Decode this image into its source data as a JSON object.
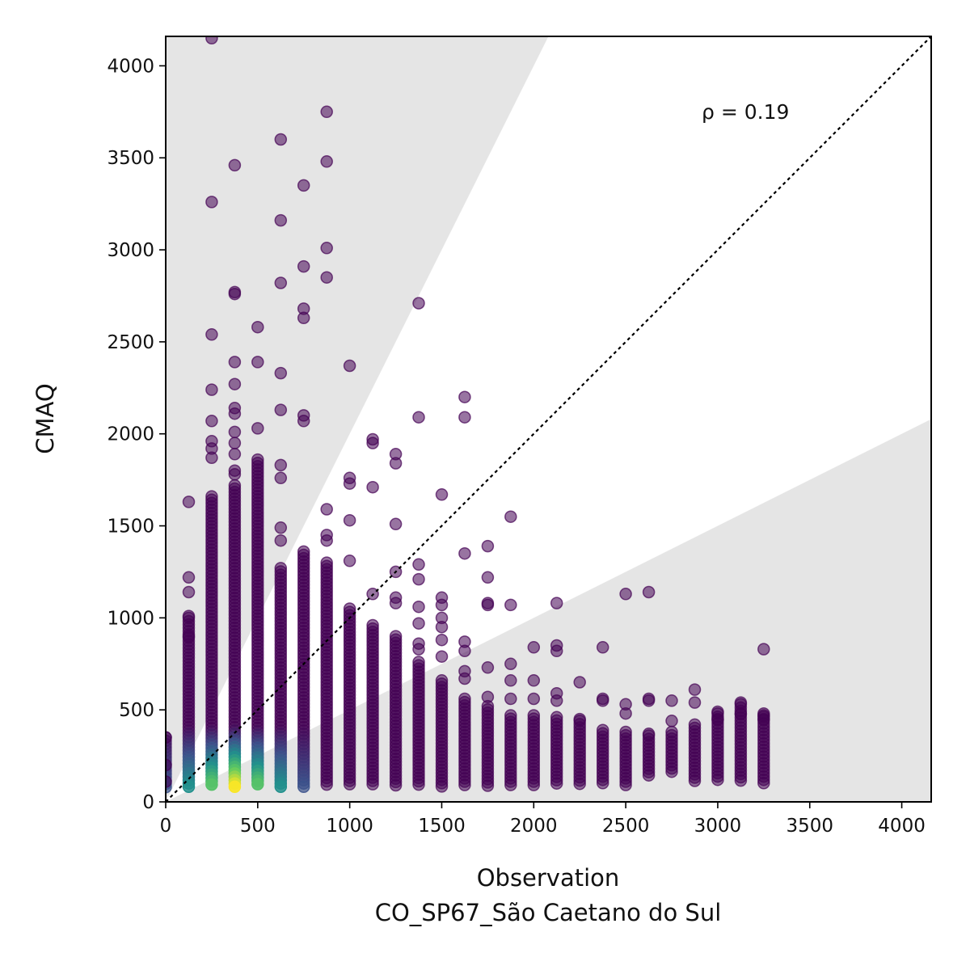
{
  "chart_data": {
    "type": "scatter",
    "title": "",
    "xlabel": "Observation",
    "xlabel_line2": "CO_SP67_São Caetano do Sul",
    "ylabel": "CMAQ",
    "xlim": [
      0,
      4160
    ],
    "ylim": [
      0,
      4160
    ],
    "xticks": [
      0,
      500,
      1000,
      1500,
      2000,
      2500,
      3000,
      3500,
      4000
    ],
    "yticks": [
      0,
      500,
      1000,
      1500,
      2000,
      2500,
      3000,
      3500,
      4000
    ],
    "xtick_labels": [
      "0",
      "500",
      "1000",
      "1500",
      "2000",
      "2500",
      "3000",
      "3500",
      "4000"
    ],
    "ytick_labels": [
      "0",
      "500",
      "1000",
      "1500",
      "2000",
      "2500",
      "3000",
      "3500",
      "4000"
    ],
    "grid": false,
    "annotation": "ρ = 0.19",
    "reference_line": {
      "type": "1:1",
      "style": "dotted",
      "color": "#000000"
    },
    "shaded_regions": {
      "description": "outside factor-of-2 band",
      "upper_slope": 2,
      "lower_slope": 0.5,
      "color": "#e5e5e5"
    },
    "colormap": "viridis",
    "colors": [
      "#440154",
      "#3b528b",
      "#21918c",
      "#5ec962",
      "#fde725"
    ],
    "x_columns": [
      0,
      125,
      250,
      375,
      500,
      625,
      750,
      875,
      1000,
      1125,
      1250,
      1375,
      1500,
      1625,
      1750,
      1875,
      2000,
      2125,
      2250,
      2375,
      2500,
      2625,
      2750,
      2875,
      3000,
      3125,
      3250
    ],
    "column_ranges": [
      [
        80,
        350
      ],
      [
        80,
        1000
      ],
      [
        80,
        1660
      ],
      [
        80,
        1720
      ],
      [
        80,
        1860
      ],
      [
        80,
        1270
      ],
      [
        80,
        1360
      ],
      [
        80,
        1300
      ],
      [
        80,
        1050
      ],
      [
        80,
        960
      ],
      [
        80,
        900
      ],
      [
        80,
        760
      ],
      [
        80,
        660
      ],
      [
        80,
        560
      ],
      [
        80,
        520
      ],
      [
        80,
        470
      ],
      [
        90,
        470
      ],
      [
        90,
        460
      ],
      [
        90,
        440
      ],
      [
        90,
        390
      ],
      [
        90,
        380
      ],
      [
        140,
        360
      ],
      [
        150,
        380
      ],
      [
        100,
        420
      ],
      [
        110,
        480
      ],
      [
        110,
        530
      ],
      [
        100,
        480
      ]
    ],
    "outliers": [
      [
        0,
        350
      ],
      [
        0,
        200
      ],
      [
        0,
        110
      ],
      [
        125,
        1630
      ],
      [
        125,
        1220
      ],
      [
        125,
        1140
      ],
      [
        125,
        1010
      ],
      [
        125,
        900
      ],
      [
        250,
        4150
      ],
      [
        250,
        3260
      ],
      [
        250,
        2540
      ],
      [
        250,
        2240
      ],
      [
        250,
        2070
      ],
      [
        250,
        1960
      ],
      [
        250,
        1920
      ],
      [
        250,
        1870
      ],
      [
        375,
        3460
      ],
      [
        375,
        2770
      ],
      [
        375,
        2760
      ],
      [
        375,
        2390
      ],
      [
        375,
        2270
      ],
      [
        375,
        2140
      ],
      [
        375,
        2110
      ],
      [
        375,
        2010
      ],
      [
        375,
        1950
      ],
      [
        375,
        1890
      ],
      [
        375,
        1800
      ],
      [
        375,
        1780
      ],
      [
        500,
        2580
      ],
      [
        500,
        2390
      ],
      [
        500,
        2030
      ],
      [
        625,
        3600
      ],
      [
        625,
        3160
      ],
      [
        625,
        2820
      ],
      [
        625,
        2330
      ],
      [
        625,
        2130
      ],
      [
        625,
        1830
      ],
      [
        625,
        1760
      ],
      [
        625,
        1490
      ],
      [
        625,
        1420
      ],
      [
        750,
        3350
      ],
      [
        750,
        2910
      ],
      [
        750,
        2680
      ],
      [
        750,
        2630
      ],
      [
        750,
        2100
      ],
      [
        750,
        2070
      ],
      [
        875,
        3750
      ],
      [
        875,
        3480
      ],
      [
        875,
        3010
      ],
      [
        875,
        2850
      ],
      [
        875,
        1590
      ],
      [
        875,
        1450
      ],
      [
        875,
        1420
      ],
      [
        1000,
        2370
      ],
      [
        1000,
        1760
      ],
      [
        1000,
        1730
      ],
      [
        1000,
        1530
      ],
      [
        1000,
        1310
      ],
      [
        1125,
        1970
      ],
      [
        1125,
        1950
      ],
      [
        1125,
        1710
      ],
      [
        1125,
        1130
      ],
      [
        1250,
        1890
      ],
      [
        1250,
        1840
      ],
      [
        1250,
        1510
      ],
      [
        1250,
        1250
      ],
      [
        1250,
        1110
      ],
      [
        1250,
        1080
      ],
      [
        1375,
        2710
      ],
      [
        1375,
        2090
      ],
      [
        1375,
        1290
      ],
      [
        1375,
        1210
      ],
      [
        1375,
        1060
      ],
      [
        1375,
        970
      ],
      [
        1375,
        860
      ],
      [
        1375,
        830
      ],
      [
        1500,
        1670
      ],
      [
        1500,
        1110
      ],
      [
        1500,
        1070
      ],
      [
        1500,
        1000
      ],
      [
        1500,
        950
      ],
      [
        1500,
        880
      ],
      [
        1500,
        790
      ],
      [
        1625,
        2200
      ],
      [
        1625,
        2090
      ],
      [
        1625,
        1350
      ],
      [
        1625,
        870
      ],
      [
        1625,
        820
      ],
      [
        1625,
        710
      ],
      [
        1625,
        670
      ],
      [
        1750,
        1390
      ],
      [
        1750,
        1220
      ],
      [
        1750,
        1080
      ],
      [
        1750,
        1070
      ],
      [
        1750,
        730
      ],
      [
        1750,
        570
      ],
      [
        1875,
        1550
      ],
      [
        1875,
        1070
      ],
      [
        1875,
        750
      ],
      [
        1875,
        660
      ],
      [
        1875,
        560
      ],
      [
        2000,
        840
      ],
      [
        2000,
        660
      ],
      [
        2000,
        560
      ],
      [
        2125,
        1080
      ],
      [
        2125,
        850
      ],
      [
        2125,
        820
      ],
      [
        2125,
        590
      ],
      [
        2125,
        550
      ],
      [
        2250,
        650
      ],
      [
        2250,
        450
      ],
      [
        2375,
        840
      ],
      [
        2375,
        560
      ],
      [
        2375,
        550
      ],
      [
        2500,
        1130
      ],
      [
        2500,
        530
      ],
      [
        2500,
        480
      ],
      [
        2625,
        1140
      ],
      [
        2625,
        560
      ],
      [
        2625,
        550
      ],
      [
        2625,
        370
      ],
      [
        2750,
        550
      ],
      [
        2750,
        440
      ],
      [
        2875,
        610
      ],
      [
        2875,
        540
      ],
      [
        3000,
        490
      ],
      [
        3000,
        450
      ],
      [
        3125,
        540
      ],
      [
        3125,
        480
      ],
      [
        3250,
        830
      ],
      [
        3250,
        470
      ],
      [
        3250,
        450
      ]
    ]
  }
}
